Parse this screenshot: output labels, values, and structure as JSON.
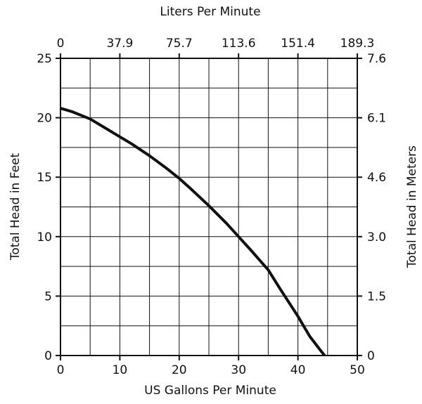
{
  "chart_data": {
    "type": "line",
    "xlabel": "US Gallons Per Minute",
    "ylabel": "Total Head in Feet",
    "x2label": "Liters Per Minute",
    "y2label": "Total Head in Meters",
    "xlim": [
      0,
      50
    ],
    "ylim": [
      0,
      25
    ],
    "grid": true,
    "x_ticks": [
      "0",
      "10",
      "20",
      "30",
      "40",
      "50"
    ],
    "y_ticks": [
      "0",
      "5",
      "10",
      "15",
      "20",
      "25"
    ],
    "x2_ticks": [
      "0",
      "37.9",
      "75.7",
      "113.6",
      "151.4",
      "189.3"
    ],
    "y2_ticks": [
      "0",
      "1.5",
      "3.0",
      "4.6",
      "6.1",
      "7.6"
    ],
    "series": [
      {
        "x": [
          0,
          2,
          5,
          8,
          10,
          12,
          15,
          18,
          20,
          22,
          25,
          28,
          30,
          32,
          35,
          37,
          40,
          42,
          44,
          44.5
        ],
        "y": [
          20.8,
          20.5,
          19.9,
          19.0,
          18.4,
          17.8,
          16.8,
          15.7,
          14.9,
          14.0,
          12.6,
          11.1,
          10.0,
          8.9,
          7.2,
          5.6,
          3.3,
          1.6,
          0.3,
          0
        ]
      }
    ],
    "colors": {
      "line": "#111111",
      "grid": "#111111",
      "text": "#111111",
      "background": "#ffffff"
    }
  }
}
